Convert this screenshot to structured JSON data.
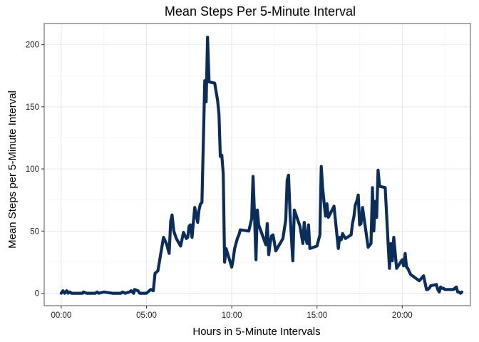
{
  "chart_data": {
    "type": "line",
    "title": "Mean Steps Per 5-Minute Interval",
    "xlabel": "Hours in 5-Minute Intervals",
    "ylabel": "Mean Steps per 5-Minute Interval",
    "xlim": [
      -1.0,
      24.0
    ],
    "ylim": [
      -10,
      217
    ],
    "x_ticks": [
      0,
      5,
      10,
      15,
      20
    ],
    "x_tick_labels": [
      "00:00",
      "05:00",
      "10:00",
      "15:00",
      "20:00"
    ],
    "y_ticks": [
      0,
      50,
      100,
      150,
      200
    ],
    "y_tick_labels": [
      "0",
      "50",
      "100",
      "150",
      "200"
    ],
    "grid": true,
    "line_color": "#0b2d5b",
    "series": [
      {
        "x": [
          0.0,
          0.1,
          0.2,
          0.25,
          0.33,
          0.4,
          0.5,
          0.6,
          0.75,
          1.0,
          1.25,
          1.3,
          1.5,
          2.0,
          2.1,
          2.2,
          2.5,
          3.0,
          3.5,
          3.6,
          3.75,
          4.0,
          4.1,
          4.25,
          4.3,
          4.5,
          4.6,
          5.0,
          5.25,
          5.4,
          5.5,
          5.67,
          6.0,
          6.17,
          6.25,
          6.33,
          6.42,
          6.5,
          6.6,
          6.75,
          7.0,
          7.17,
          7.33,
          7.42,
          7.5,
          7.58,
          7.67,
          7.83,
          8.0,
          8.08,
          8.17,
          8.25,
          8.33,
          8.42,
          8.5,
          8.58,
          8.67,
          9.0,
          9.17,
          9.25,
          9.33,
          9.42,
          9.5,
          9.58,
          9.67,
          10.0,
          10.08,
          10.17,
          10.25,
          10.33,
          10.42,
          10.5,
          11.0,
          11.17,
          11.25,
          11.33,
          11.42,
          11.5,
          11.58,
          12.0,
          12.08,
          12.17,
          12.25,
          12.33,
          12.42,
          12.5,
          12.58,
          13.0,
          13.17,
          13.25,
          13.33,
          13.42,
          13.58,
          13.67,
          14.0,
          14.17,
          14.25,
          14.33,
          14.42,
          14.5,
          14.58,
          15.0,
          15.17,
          15.25,
          15.33,
          15.42,
          15.5,
          15.58,
          15.67,
          16.0,
          16.25,
          16.33,
          16.42,
          16.5,
          16.58,
          16.67,
          17.0,
          17.08,
          17.17,
          17.25,
          17.33,
          17.42,
          17.5,
          17.58,
          17.67,
          18.0,
          18.17,
          18.25,
          18.33,
          18.42,
          18.5,
          18.58,
          18.67,
          19.0,
          19.17,
          19.25,
          19.33,
          19.42,
          19.5,
          19.58,
          19.67,
          20.0,
          20.08,
          20.17,
          20.25,
          20.33,
          20.42,
          20.5,
          21.0,
          21.25,
          21.33,
          21.42,
          21.5,
          21.58,
          21.67,
          22.0,
          22.08,
          22.17,
          22.25,
          22.33,
          22.42,
          22.5,
          23.0,
          23.17,
          23.25,
          23.33,
          23.42,
          23.5
        ],
        "y": [
          0,
          2,
          0,
          1,
          2,
          0,
          1,
          0,
          0,
          0,
          0,
          1,
          0,
          0,
          1,
          0,
          1,
          0,
          0,
          1,
          0,
          1,
          2,
          0,
          3,
          2,
          0,
          0,
          3,
          2,
          16,
          18,
          45,
          40,
          36,
          32,
          58,
          63,
          50,
          44,
          38,
          49,
          44,
          45,
          54,
          55,
          45,
          69,
          57,
          67,
          72,
          73,
          120,
          171,
          154,
          206,
          170,
          169,
          155,
          144,
          110,
          111,
          96,
          25,
          36,
          21,
          27,
          36,
          40,
          44,
          47,
          51,
          50,
          60,
          94,
          66,
          27,
          67,
          55,
          39,
          56,
          31,
          40,
          46,
          47,
          41,
          34,
          44,
          59,
          91,
          95,
          64,
          26,
          67,
          54,
          40,
          57,
          45,
          40,
          55,
          36,
          38,
          47,
          102,
          85,
          72,
          62,
          72,
          61,
          70,
          36,
          45,
          43,
          48,
          46,
          44,
          47,
          56,
          62,
          71,
          74,
          79,
          55,
          56,
          69,
          37,
          40,
          85,
          50,
          74,
          61,
          99,
          86,
          85,
          40,
          20,
          40,
          26,
          45,
          33,
          20,
          27,
          22,
          32,
          21,
          20,
          17,
          15,
          10,
          14,
          9,
          3,
          3,
          4,
          6,
          7,
          3,
          1,
          5,
          4,
          4,
          3,
          3,
          5,
          1,
          1,
          0,
          1
        ]
      }
    ]
  }
}
